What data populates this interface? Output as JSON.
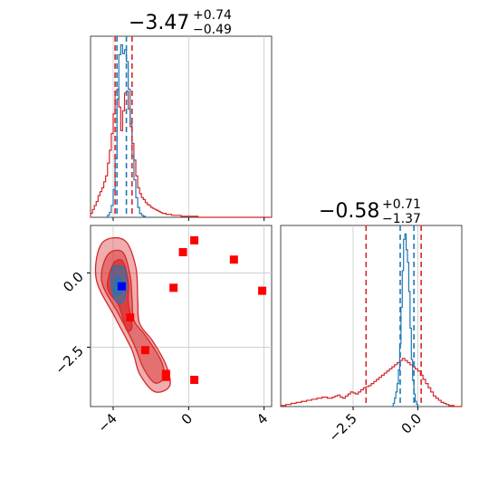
{
  "chart_data": [
    {
      "type": "histogram",
      "panel": "top-left",
      "title": {
        "value": "−3.47",
        "upper": "+0.74",
        "lower": "−0.49"
      },
      "xlim": [
        -5.2,
        4.4
      ],
      "xticks": [
        -4,
        0,
        4
      ],
      "grid": true,
      "red_quantiles": [
        -3.9,
        -3.0
      ],
      "blue_quantiles": [
        -3.8,
        -3.3
      ],
      "blue_hist": {
        "bin_start": -4.4,
        "bin_width": 0.1,
        "counts": [
          0,
          2,
          5,
          12,
          28,
          60,
          120,
          165,
          175,
          166,
          170,
          158,
          130,
          95,
          62,
          38,
          20,
          10,
          4,
          2,
          1,
          0
        ]
      },
      "red_hist": {
        "bin_start": -5.2,
        "bin_width": 0.1,
        "counts": [
          4,
          8,
          12,
          16,
          22,
          26,
          30,
          36,
          42,
          55,
          68,
          85,
          105,
          128,
          130,
          112,
          88,
          108,
          126,
          128,
          110,
          92,
          75,
          58,
          42,
          30,
          24,
          20,
          18,
          15,
          13,
          12,
          10,
          9,
          8,
          7,
          6,
          5,
          4,
          4,
          3,
          3,
          3,
          2,
          2,
          2,
          2,
          2,
          1,
          1,
          1,
          1,
          1,
          1,
          1,
          1,
          1,
          0,
          0,
          0,
          0,
          0,
          0,
          0,
          0,
          0,
          0,
          0,
          0,
          0,
          0,
          0,
          0,
          0,
          0,
          0,
          0,
          0,
          0,
          0,
          0,
          0,
          0,
          0,
          0,
          0,
          0,
          0,
          0,
          0,
          0,
          0,
          0,
          0,
          0,
          0
        ]
      }
    },
    {
      "type": "histogram",
      "panel": "bottom-right",
      "title": {
        "value": "−0.58",
        "upper": "+0.71",
        "lower": "−1.37"
      },
      "xlim": [
        -5.3,
        1.7
      ],
      "xticks": [
        -2.5,
        0.0
      ],
      "xtick_labels": [
        "−2.5",
        "0.0"
      ],
      "grid": true,
      "red_quantiles": [
        -2.0,
        0.13
      ],
      "blue_quantiles": [
        -0.68,
        -0.15
      ],
      "blue_hist": {
        "bin_start": -1.0,
        "bin_width": 0.05,
        "counts": [
          0,
          3,
          8,
          14,
          22,
          35,
          60,
          95,
          130,
          160,
          165,
          150,
          138,
          110,
          75,
          45,
          25,
          12,
          5,
          2,
          0
        ]
      },
      "red_hist": {
        "bin_start": -5.3,
        "bin_width": 0.1,
        "counts": [
          1,
          1,
          2,
          2,
          3,
          3,
          4,
          4,
          5,
          5,
          6,
          6,
          7,
          7,
          8,
          8,
          9,
          9,
          8,
          8,
          9,
          10,
          11,
          9,
          8,
          10,
          12,
          14,
          13,
          12,
          14,
          16,
          18,
          19,
          20,
          22,
          24,
          26,
          28,
          30,
          32,
          34,
          36,
          38,
          40,
          42,
          44,
          46,
          44,
          42,
          40,
          38,
          36,
          34,
          30,
          26,
          22,
          18,
          14,
          10,
          8,
          6,
          4,
          3,
          2,
          1,
          1,
          0,
          0,
          0
        ]
      }
    },
    {
      "type": "scatter",
      "panel": "bottom-left",
      "xlim": [
        -5.2,
        4.4
      ],
      "ylim": [
        -4.5,
        1.6
      ],
      "xticks": [
        -4,
        0,
        4
      ],
      "yticks": [
        0.0,
        -2.5
      ],
      "ytick_labels": [
        "0.0",
        "−2.5"
      ],
      "grid": true,
      "red_contours": [
        [
          [
            -4.6,
            1.0
          ],
          [
            -3.4,
            1.1
          ],
          [
            -2.8,
            0.2
          ],
          [
            -2.7,
            -0.9
          ],
          [
            -2.6,
            -1.7
          ],
          [
            -1.9,
            -2.3
          ],
          [
            -1.2,
            -3.1
          ],
          [
            -1.0,
            -3.8
          ],
          [
            -1.8,
            -4.0
          ],
          [
            -2.6,
            -3.4
          ],
          [
            -3.0,
            -2.6
          ],
          [
            -3.9,
            -1.5
          ],
          [
            -4.9,
            -0.2
          ]
        ],
        [
          [
            -4.3,
            0.6
          ],
          [
            -3.5,
            0.7
          ],
          [
            -3.1,
            -0.1
          ],
          [
            -3.0,
            -0.9
          ],
          [
            -2.9,
            -1.6
          ],
          [
            -2.3,
            -2.1
          ],
          [
            -1.5,
            -2.9
          ],
          [
            -1.3,
            -3.5
          ],
          [
            -1.8,
            -3.7
          ],
          [
            -2.4,
            -3.2
          ],
          [
            -2.9,
            -2.4
          ],
          [
            -3.7,
            -1.4
          ],
          [
            -4.6,
            -0.3
          ]
        ],
        [
          [
            -4.0,
            0.3
          ],
          [
            -3.5,
            0.4
          ],
          [
            -3.2,
            -0.3
          ],
          [
            -3.2,
            -1.0
          ],
          [
            -3.0,
            -1.8
          ],
          [
            -3.3,
            -1.9
          ],
          [
            -3.7,
            -1.1
          ],
          [
            -4.3,
            -0.5
          ]
        ]
      ],
      "blue_contours": [
        [
          [
            -4.0,
            0.2
          ],
          [
            -3.4,
            0.15
          ],
          [
            -3.3,
            -0.5
          ],
          [
            -3.5,
            -1.0
          ],
          [
            -3.9,
            -0.9
          ],
          [
            -4.1,
            -0.4
          ]
        ],
        [
          [
            -3.85,
            -0.15
          ],
          [
            -3.55,
            -0.2
          ],
          [
            -3.5,
            -0.55
          ],
          [
            -3.7,
            -0.75
          ],
          [
            -3.95,
            -0.6
          ]
        ]
      ],
      "red_points": [
        {
          "x": -0.3,
          "y": 0.7
        },
        {
          "x": 0.3,
          "y": 1.1
        },
        {
          "x": 2.4,
          "y": 0.45
        },
        {
          "x": -0.8,
          "y": -0.5
        },
        {
          "x": 3.9,
          "y": -0.6
        },
        {
          "x": -3.1,
          "y": -1.5
        },
        {
          "x": -2.3,
          "y": -2.6
        },
        {
          "x": -1.2,
          "y": -3.4
        },
        {
          "x": -1.2,
          "y": -3.5
        },
        {
          "x": 0.3,
          "y": -3.6
        }
      ],
      "blue_point": {
        "x": -3.55,
        "y": -0.45
      }
    }
  ]
}
